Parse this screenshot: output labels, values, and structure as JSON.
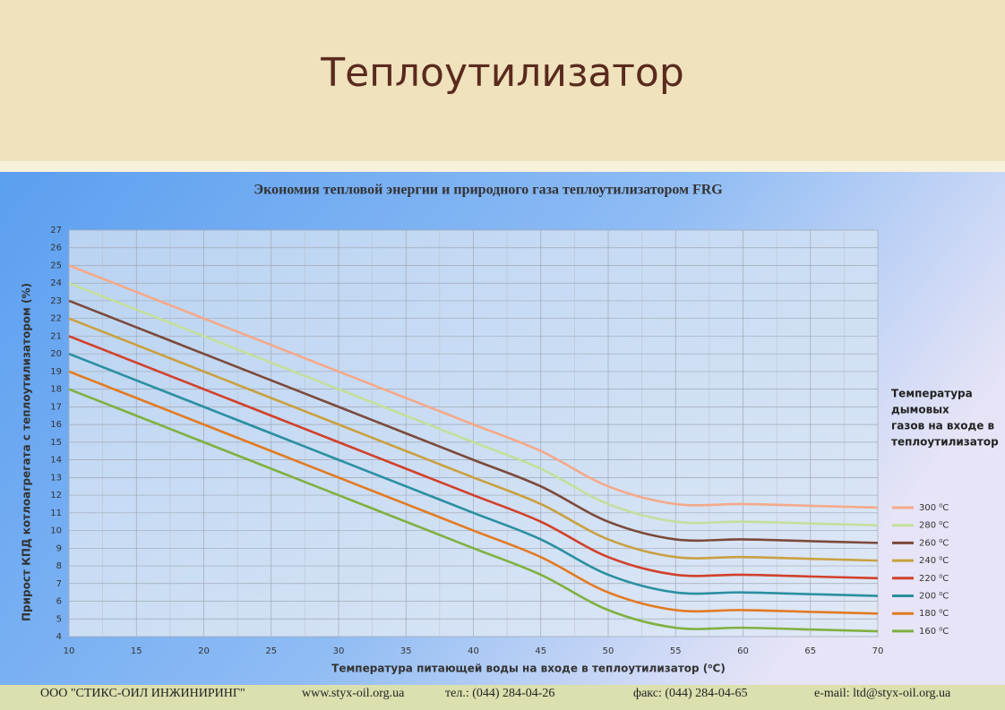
{
  "slide_title": "Теплоутилизатор",
  "footer": [
    "ООО \"СТИКС-ОИЛ ИНЖИНИРИНГ\"",
    "www.styx-oil.org.ua",
    "тел.: (044)  284-04-26",
    "факс:  (044) 284-04-65",
    "e-mail:  ltd@styx-oil.org.ua"
  ],
  "chart_data": {
    "type": "line",
    "title": "Экономия тепловой энергии и природного газа теплоутилизатором FRG",
    "x_label": "Температура питающей воды на входе в теплоутилизатор (⁰C)",
    "y_label": "Прирост КПД котлоагрегата с теплоутилизатором (%)",
    "legend_title": [
      "Температура",
      "дымовых",
      "газов на входе в",
      "теплоутилизатор"
    ],
    "x": [
      10,
      15,
      20,
      25,
      30,
      35,
      40,
      45,
      50,
      55,
      60,
      65,
      70
    ],
    "xlim": [
      10,
      70
    ],
    "xticks": [
      10,
      15,
      20,
      25,
      30,
      35,
      40,
      45,
      50,
      55,
      60,
      65,
      70
    ],
    "ylim": [
      4,
      27
    ],
    "yticks": [
      4,
      5,
      6,
      7,
      8,
      9,
      10,
      11,
      12,
      13,
      14,
      15,
      16,
      17,
      18,
      19,
      20,
      21,
      22,
      23,
      24,
      25,
      26,
      27
    ],
    "grid": true,
    "legend": "right",
    "series": [
      {
        "name": "300 ⁰C",
        "color": "#f4a98a",
        "values": [
          25,
          23.5,
          22,
          20.5,
          19,
          17.5,
          16,
          14.5,
          12.5,
          11.5,
          11.5,
          11.4,
          11.3
        ]
      },
      {
        "name": "280 ⁰C",
        "color": "#c3df9c",
        "values": [
          24,
          22.5,
          21,
          19.5,
          18,
          16.5,
          15,
          13.5,
          11.5,
          10.5,
          10.5,
          10.4,
          10.3
        ]
      },
      {
        "name": "260 ⁰C",
        "color": "#7b4a3a",
        "values": [
          23,
          21.5,
          20,
          18.5,
          17,
          15.5,
          14,
          12.5,
          10.5,
          9.5,
          9.5,
          9.4,
          9.3
        ]
      },
      {
        "name": "240 ⁰C",
        "color": "#c9a040",
        "values": [
          22,
          20.5,
          19,
          17.5,
          16,
          14.5,
          13,
          11.5,
          9.5,
          8.5,
          8.5,
          8.4,
          8.3
        ]
      },
      {
        "name": "220 ⁰C",
        "color": "#d1402a",
        "values": [
          21,
          19.5,
          18,
          16.5,
          15,
          13.5,
          12,
          10.5,
          8.5,
          7.5,
          7.5,
          7.4,
          7.3
        ]
      },
      {
        "name": "200 ⁰C",
        "color": "#2a8fa0",
        "values": [
          20,
          18.5,
          17,
          15.5,
          14,
          12.5,
          11,
          9.5,
          7.5,
          6.5,
          6.5,
          6.4,
          6.3
        ]
      },
      {
        "name": "180 ⁰C",
        "color": "#e27a22",
        "values": [
          19,
          17.5,
          16,
          14.5,
          13,
          11.5,
          10,
          8.5,
          6.5,
          5.5,
          5.5,
          5.4,
          5.3
        ]
      },
      {
        "name": "160 ⁰C",
        "color": "#80b040",
        "values": [
          18,
          16.5,
          15,
          13.5,
          12,
          10.5,
          9,
          7.5,
          5.5,
          4.5,
          4.5,
          4.4,
          4.3
        ]
      }
    ]
  }
}
